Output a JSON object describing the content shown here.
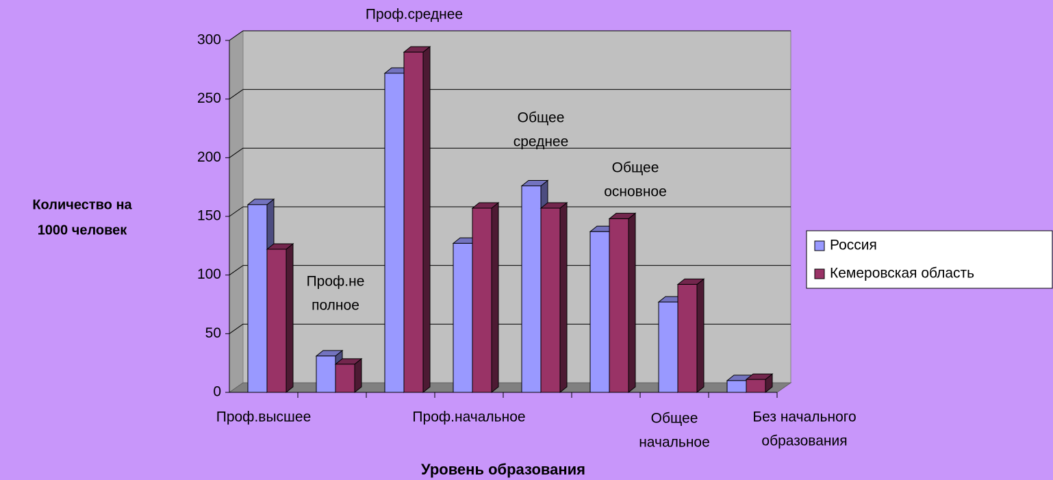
{
  "chart_data": {
    "type": "bar3d",
    "categories": [
      [
        "Проф.высшее"
      ],
      [
        "Проф.не",
        "полное"
      ],
      [
        "Проф.среднее"
      ],
      [
        "Проф.начальное"
      ],
      [
        "Общее",
        "среднее"
      ],
      [
        "Общее",
        "основное"
      ],
      [
        "Общее",
        "начальное"
      ],
      [
        "Без начального",
        "образования"
      ]
    ],
    "series": [
      {
        "name": "Россия",
        "color": "#9999ff",
        "values": [
          160,
          31,
          272,
          127,
          176,
          137,
          77,
          10
        ]
      },
      {
        "name": "Кемеровская область",
        "color": "#993366",
        "values": [
          122,
          24,
          290,
          157,
          157,
          148,
          92,
          11
        ]
      }
    ],
    "ylabel": [
      "Количество на",
      "1000 человек"
    ],
    "xlabel": "Уровень образования",
    "ylim": [
      0,
      300
    ],
    "yticks": [
      0,
      50,
      100,
      150,
      200,
      250,
      300
    ],
    "grid": true,
    "legend": "right"
  }
}
